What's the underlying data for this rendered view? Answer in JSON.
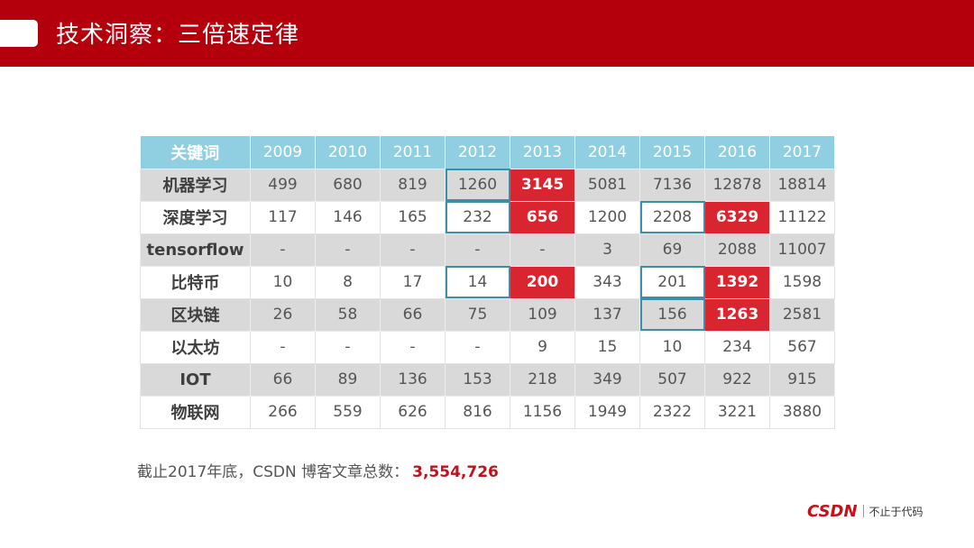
{
  "header": {
    "title": "技术洞察：三倍速定律"
  },
  "table": {
    "columns": [
      "关键词",
      "2009",
      "2010",
      "2011",
      "2012",
      "2013",
      "2014",
      "2015",
      "2016",
      "2017"
    ],
    "rows": [
      {
        "label": "机器学习",
        "cells": [
          "499",
          "680",
          "819",
          "1260",
          "3145",
          "5081",
          "7136",
          "12878",
          "18814"
        ]
      },
      {
        "label": "深度学习",
        "cells": [
          "117",
          "146",
          "165",
          "232",
          "656",
          "1200",
          "2208",
          "6329",
          "11122"
        ]
      },
      {
        "label": "tensorflow",
        "cells": [
          "-",
          "-",
          "-",
          "-",
          "-",
          "3",
          "69",
          "2088",
          "11007"
        ]
      },
      {
        "label": "比特币",
        "cells": [
          "10",
          "8",
          "17",
          "14",
          "200",
          "343",
          "201",
          "1392",
          "1598"
        ]
      },
      {
        "label": "区块链",
        "cells": [
          "26",
          "58",
          "66",
          "75",
          "109",
          "137",
          "156",
          "1263",
          "2581"
        ]
      },
      {
        "label": "以太坊",
        "cells": [
          "-",
          "-",
          "-",
          "-",
          "9",
          "15",
          "10",
          "234",
          "567"
        ]
      },
      {
        "label": "IOT",
        "cells": [
          "66",
          "89",
          "136",
          "153",
          "218",
          "349",
          "507",
          "922",
          "915"
        ]
      },
      {
        "label": "物联网",
        "cells": [
          "266",
          "559",
          "626",
          "816",
          "1156",
          "1949",
          "2322",
          "3221",
          "3880"
        ]
      }
    ]
  },
  "footnote": {
    "text": "截止2017年底，CSDN 博客文章总数：",
    "total": "3,554,726"
  },
  "logo": {
    "brand": "CSDN",
    "slogan": "不止于代码"
  },
  "colors": {
    "header_red": "#b3000c",
    "highlight_red": "#d9252f",
    "box_teal": "#3c8fa6",
    "header_blue": "#8fcfe1"
  }
}
